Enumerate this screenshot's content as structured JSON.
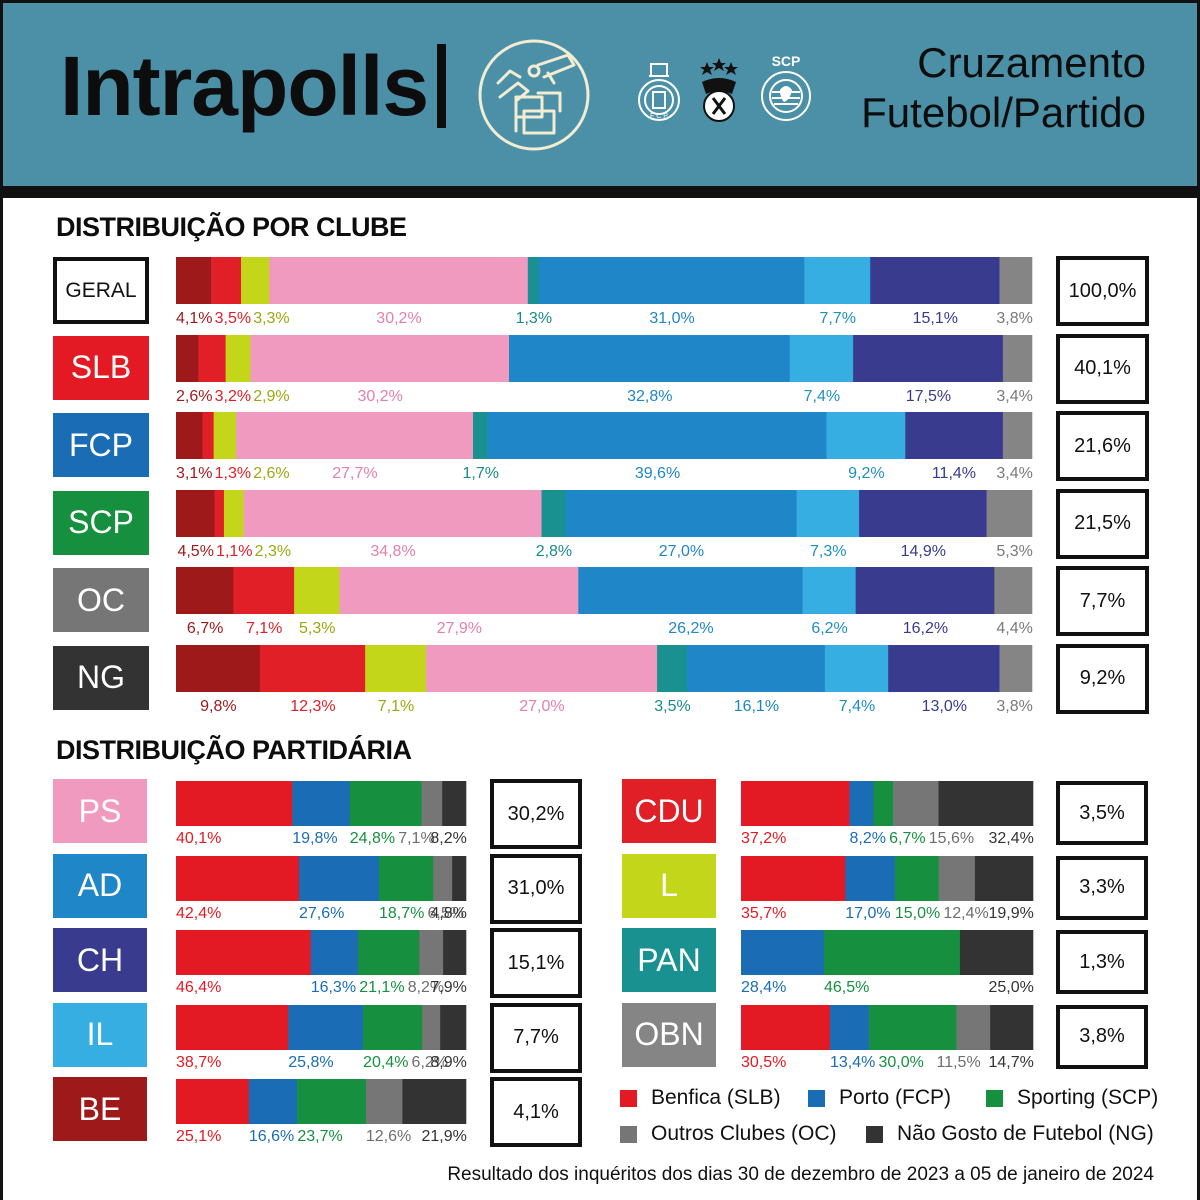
{
  "header": {
    "brand": "Intrapolls",
    "title_line1": "Cruzamento",
    "title_line2": "Futebol/Partido",
    "club_crests": [
      "porto-crest",
      "benfica-crest",
      "sporting-crest"
    ],
    "sporting_crest_text": "SCP"
  },
  "colors": {
    "BE": "#9e1a1a",
    "CDU": "#e01f26",
    "L": "#c3d619",
    "PS": "#f19ac0",
    "PAN": "#1a9191",
    "AD": "#1f86c8",
    "IL": "#37aee2",
    "CH": "#383b8e",
    "OBN": "#858585",
    "SLB": "#e31a23",
    "FCP": "#1a6db5",
    "SCP": "#16903f",
    "OC": "#767676",
    "NG": "#333333",
    "header_bg": "#4b90a7"
  },
  "chart_data": [
    {
      "type": "bar",
      "orientation": "horizontal-stacked-100",
      "title": "DISTRIBUIÇÃO POR CLUBE",
      "segments": [
        "BE",
        "CDU",
        "L",
        "PS",
        "PAN",
        "AD",
        "IL",
        "CH",
        "OBN"
      ],
      "rows": [
        {
          "label": "GERAL",
          "total": "100,0%",
          "values": [
            4.1,
            3.5,
            3.3,
            30.2,
            1.3,
            31.0,
            7.7,
            15.1,
            3.8
          ],
          "labels": [
            "4,1%",
            "3,5%",
            "3,3%",
            "30,2%",
            "1,3%",
            "31,0%",
            "7,7%",
            "15,1%",
            "3,8%"
          ]
        },
        {
          "label": "SLB",
          "total": "40,1%",
          "values": [
            2.6,
            3.2,
            2.9,
            30.2,
            0,
            32.8,
            7.4,
            17.5,
            3.4
          ],
          "labels": [
            "2,6%",
            "3,2%",
            "2,9%",
            "30,2%",
            "",
            "32,8%",
            "7,4%",
            "17,5%",
            "3,4%"
          ]
        },
        {
          "label": "FCP",
          "total": "21,6%",
          "values": [
            3.1,
            1.3,
            2.6,
            27.7,
            1.7,
            39.6,
            9.2,
            11.4,
            3.4
          ],
          "labels": [
            "3,1%",
            "1,3%",
            "2,6%",
            "27,7%",
            "1,7%",
            "39,6%",
            "9,2%",
            "11,4%",
            "3,4%"
          ]
        },
        {
          "label": "SCP",
          "total": "21,5%",
          "values": [
            4.5,
            1.1,
            2.3,
            34.8,
            2.8,
            27.0,
            7.3,
            14.9,
            5.3
          ],
          "labels": [
            "4,5%",
            "1,1%",
            "2,3%",
            "34,8%",
            "2,8%",
            "27,0%",
            "7,3%",
            "14,9%",
            "5,3%"
          ]
        },
        {
          "label": "OC",
          "total": "7,7%",
          "values": [
            6.7,
            7.1,
            5.3,
            27.9,
            0,
            26.2,
            6.2,
            16.2,
            4.4
          ],
          "labels": [
            "6,7%",
            "7,1%",
            "5,3%",
            "27,9%",
            "",
            "26,2%",
            "6,2%",
            "16,2%",
            "4,4%"
          ]
        },
        {
          "label": "NG",
          "total": "9,2%",
          "values": [
            9.8,
            12.3,
            7.1,
            27.0,
            3.5,
            16.1,
            7.4,
            13.0,
            3.8
          ],
          "labels": [
            "9,8%",
            "12,3%",
            "7,1%",
            "27,0%",
            "3,5%",
            "16,1%",
            "7,4%",
            "13,0%",
            "3,8%"
          ]
        }
      ]
    },
    {
      "type": "bar",
      "orientation": "horizontal-stacked-100",
      "title": "DISTRIBUIÇÃO PARTIDÁRIA",
      "segments": [
        "SLB",
        "FCP",
        "SCP",
        "OC",
        "NG"
      ],
      "rows": [
        {
          "label": "PS",
          "total": "30,2%",
          "values": [
            40.1,
            19.8,
            24.8,
            7.1,
            8.2
          ],
          "labels": [
            "40,1%",
            "19,8%",
            "24,8%",
            "7,1%",
            "8,2%"
          ]
        },
        {
          "label": "AD",
          "total": "31,0%",
          "values": [
            42.4,
            27.6,
            18.7,
            6.5,
            4.8
          ],
          "labels": [
            "42,4%",
            "27,6%",
            "18,7%",
            "6,5%",
            "4,8%"
          ]
        },
        {
          "label": "CH",
          "total": "15,1%",
          "values": [
            46.4,
            16.3,
            21.1,
            8.2,
            7.9
          ],
          "labels": [
            "46,4%",
            "16,3%",
            "21,1%",
            "8,2%",
            "7,9%"
          ]
        },
        {
          "label": "IL",
          "total": "7,7%",
          "values": [
            38.7,
            25.8,
            20.4,
            6.2,
            8.9
          ],
          "labels": [
            "38,7%",
            "25,8%",
            "20,4%",
            "6,2%",
            "8,9%"
          ]
        },
        {
          "label": "BE",
          "total": "4,1%",
          "values": [
            25.1,
            16.6,
            23.7,
            12.6,
            21.9
          ],
          "labels": [
            "25,1%",
            "16,6%",
            "23,7%",
            "12,6%",
            "21,9%"
          ]
        },
        {
          "label": "CDU",
          "total": "3,5%",
          "values": [
            37.2,
            8.2,
            6.7,
            15.6,
            32.4
          ],
          "labels": [
            "37,2%",
            "8,2%",
            "6,7%",
            "15,6%",
            "32,4%"
          ]
        },
        {
          "label": "L",
          "total": "3,3%",
          "values": [
            35.7,
            17.0,
            15.0,
            12.4,
            19.9
          ],
          "labels": [
            "35,7%",
            "17,0%",
            "15,0%",
            "12,4%",
            "19,9%"
          ]
        },
        {
          "label": "PAN",
          "total": "1,3%",
          "values": [
            0,
            28.4,
            46.5,
            0,
            25.0
          ],
          "labels": [
            "",
            "28,4%",
            "46,5%",
            "",
            "25,0%"
          ]
        },
        {
          "label": "OBN",
          "total": "3,8%",
          "values": [
            30.5,
            13.4,
            30.0,
            11.5,
            14.7
          ],
          "labels": [
            "30,5%",
            "13,4%",
            "30,0%",
            "11,5%",
            "14,7%"
          ]
        }
      ],
      "legend": [
        {
          "key": "SLB",
          "label": "Benfica (SLB)"
        },
        {
          "key": "FCP",
          "label": "Porto (FCP)"
        },
        {
          "key": "SCP",
          "label": "Sporting (SCP)"
        },
        {
          "key": "OC",
          "label": "Outros Clubes (OC)"
        },
        {
          "key": "NG",
          "label": "Não Gosto de Futebol (NG)"
        }
      ]
    }
  ],
  "footer": "Resultado dos inquéritos dos dias 30 de dezembro de 2023 a 05 de janeiro de 2024"
}
